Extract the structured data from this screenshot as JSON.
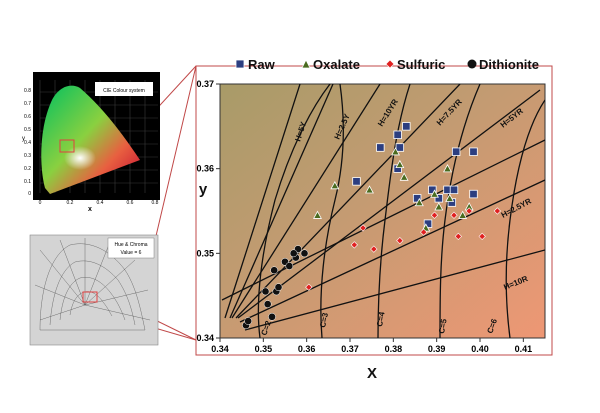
{
  "chart_data": [
    {
      "type": "scatter",
      "title": "",
      "xlabel": "X",
      "ylabel": "y",
      "xlim": [
        0.34,
        0.415
      ],
      "ylim": [
        0.34,
        0.37
      ],
      "x_ticks": [
        "0.34",
        "0.35",
        "0.36",
        "0.37",
        "0.38",
        "0.39",
        "0.40",
        "0.41"
      ],
      "y_ticks": [
        "0.34",
        "0.35",
        "0.36",
        "0.37"
      ],
      "legend_position": "top",
      "series": [
        {
          "name": "Raw",
          "marker": "square",
          "color": "#2c3e80",
          "points": [
            [
              0.3715,
              0.3585
            ],
            [
              0.381,
              0.364
            ],
            [
              0.383,
              0.365
            ],
            [
              0.377,
              0.3625
            ],
            [
              0.3815,
              0.3625
            ],
            [
              0.381,
              0.36
            ],
            [
              0.3855,
              0.3565
            ],
            [
              0.389,
              0.3575
            ],
            [
              0.388,
              0.3535
            ],
            [
              0.3945,
              0.362
            ],
            [
              0.3985,
              0.362
            ],
            [
              0.3925,
              0.3575
            ],
            [
              0.3935,
              0.356
            ],
            [
              0.394,
              0.3575
            ],
            [
              0.3985,
              0.357
            ],
            [
              0.3905,
              0.3565
            ]
          ]
        },
        {
          "name": "Oxalate",
          "marker": "triangle",
          "color": "#4a6b1f",
          "points": [
            [
              0.3625,
              0.3545
            ],
            [
              0.3665,
              0.358
            ],
            [
              0.3745,
              0.3575
            ],
            [
              0.3805,
              0.362
            ],
            [
              0.3815,
              0.3605
            ],
            [
              0.3825,
              0.359
            ],
            [
              0.386,
              0.356
            ],
            [
              0.3875,
              0.353
            ],
            [
              0.3895,
              0.357
            ],
            [
              0.3905,
              0.3555
            ],
            [
              0.393,
              0.3565
            ],
            [
              0.396,
              0.3545
            ],
            [
              0.3975,
              0.3555
            ],
            [
              0.3925,
              0.36
            ]
          ]
        },
        {
          "name": "Sulfuric",
          "marker": "diamond",
          "color": "#e02020",
          "points": [
            [
              0.3605,
              0.346
            ],
            [
              0.371,
              0.351
            ],
            [
              0.373,
              0.353
            ],
            [
              0.3755,
              0.3505
            ],
            [
              0.3815,
              0.3515
            ],
            [
              0.387,
              0.3525
            ],
            [
              0.3895,
              0.3545
            ],
            [
              0.394,
              0.3545
            ],
            [
              0.395,
              0.352
            ],
            [
              0.3975,
              0.355
            ],
            [
              0.4005,
              0.352
            ],
            [
              0.404,
              0.355
            ]
          ]
        },
        {
          "name": "Dithionite",
          "marker": "circle",
          "color": "#111111",
          "points": [
            [
              0.346,
              0.3415
            ],
            [
              0.3465,
              0.342
            ],
            [
              0.3505,
              0.3455
            ],
            [
              0.351,
              0.344
            ],
            [
              0.352,
              0.3425
            ],
            [
              0.353,
              0.3455
            ],
            [
              0.3525,
              0.348
            ],
            [
              0.3535,
              0.346
            ],
            [
              0.355,
              0.349
            ],
            [
              0.3575,
              0.3495
            ],
            [
              0.358,
              0.3505
            ],
            [
              0.3595,
              0.35
            ],
            [
              0.356,
              0.3485
            ],
            [
              0.357,
              0.35
            ]
          ]
        }
      ],
      "annotations": {
        "hue_lines": [
          "H=5Y",
          "H=2.5Y",
          "H=10YR",
          "H=7.5YR",
          "H=5YR",
          "H=2.5YR",
          "H=10R"
        ],
        "chroma_lines": [
          "C=2",
          "C=3",
          "C=4",
          "C=5",
          "C=6"
        ]
      }
    },
    {
      "type": "other",
      "title": "CIE Colour system",
      "xlabel": "x",
      "ylabel": "y",
      "x_ticks": [
        "0",
        "0.2",
        "0.4",
        "0.6",
        "0.8"
      ],
      "y_ticks": [
        "0",
        "0.1",
        "0.2",
        "0.3",
        "0.4",
        "0.5",
        "0.6",
        "0.7",
        "0.8"
      ]
    },
    {
      "type": "other",
      "title": "Hue & Chroma\nValue = 6"
    }
  ],
  "colors": {
    "raw": "#2c3e80",
    "oxalate": "#4a6b1f",
    "sulfuric": "#e02020",
    "dithionite": "#111111",
    "bg_left": "#a79a66",
    "bg_right": "#e89a74"
  }
}
